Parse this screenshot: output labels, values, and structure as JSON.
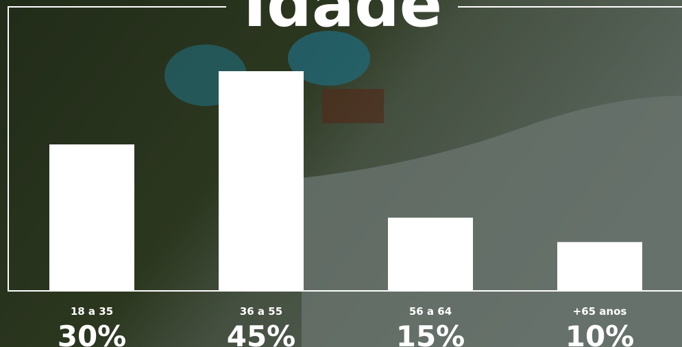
{
  "chart_data": {
    "type": "bar",
    "title": "Idade",
    "categories": [
      "18 a 35",
      "36 a 55",
      "56 a 64",
      "+65 anos"
    ],
    "values": [
      30,
      45,
      15,
      10
    ],
    "value_labels": [
      "30%",
      "45%",
      "15%",
      "10%"
    ],
    "color": "#ffffff"
  }
}
